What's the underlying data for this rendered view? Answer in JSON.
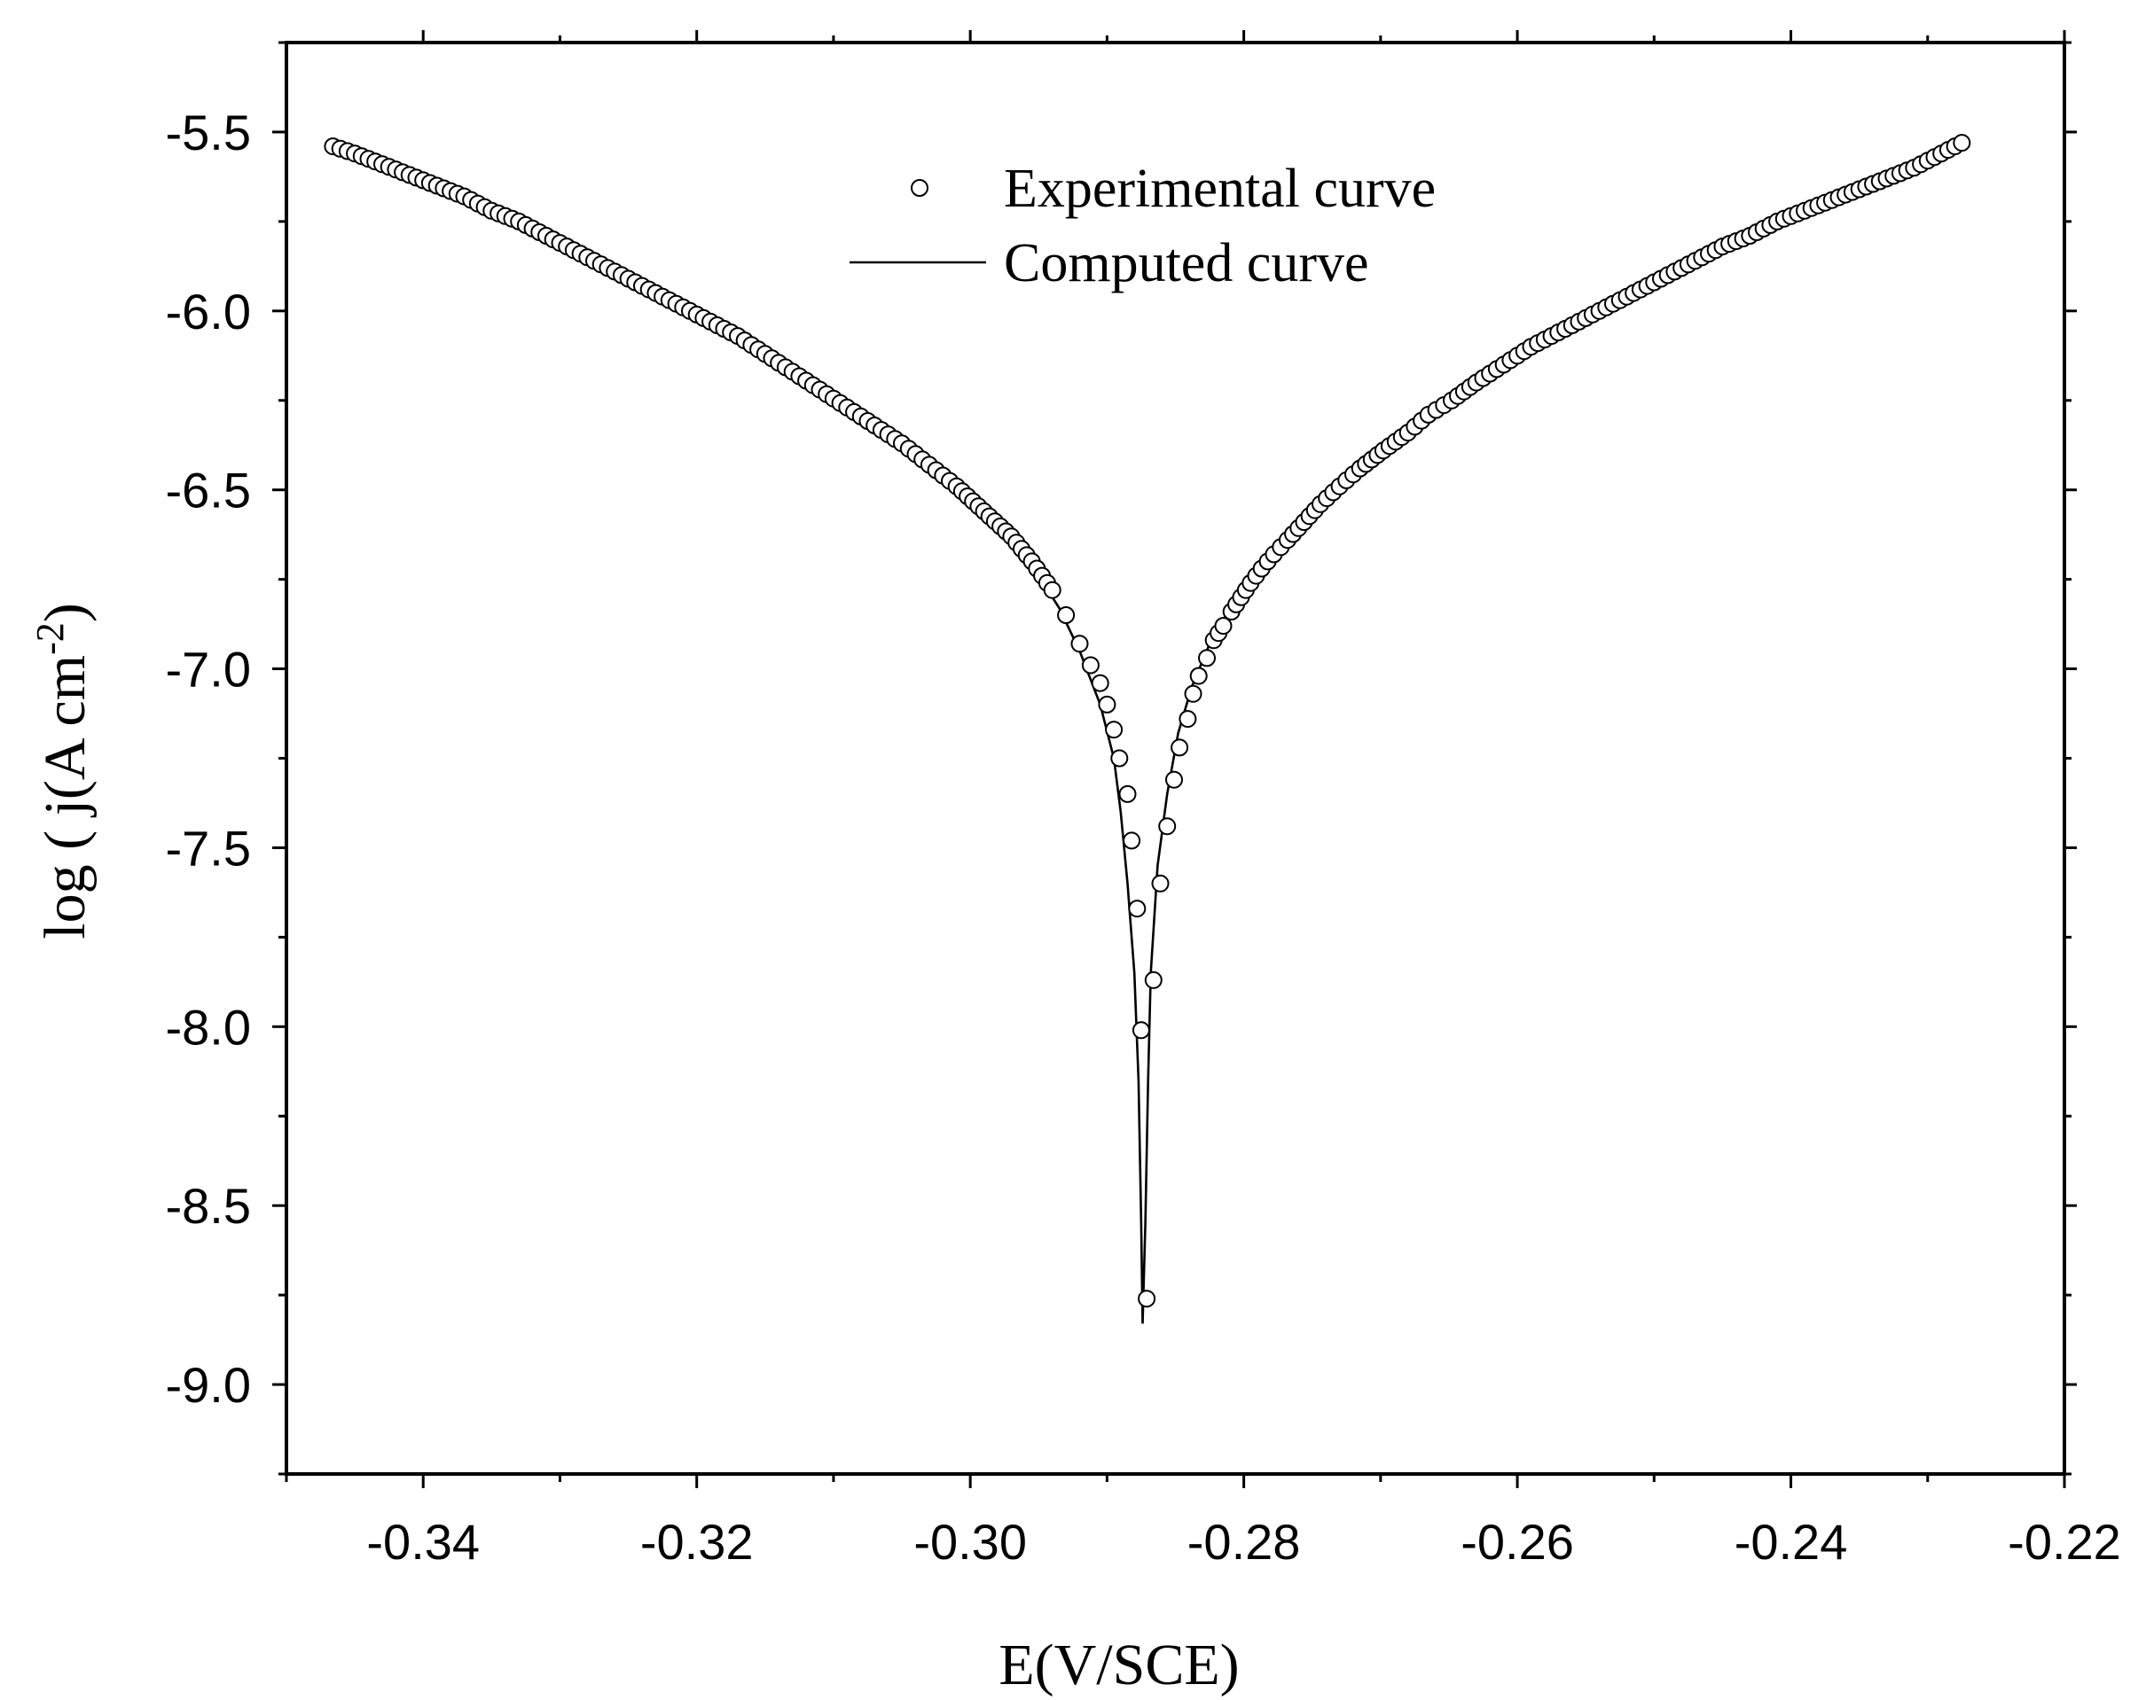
{
  "chart_data": {
    "type": "scatter",
    "title": "",
    "xlabel": "E(V/SCE)",
    "ylabel": {
      "prefix": "log ( j(A cm",
      "superscript": "-2",
      "suffix": ")"
    },
    "xlim": [
      -0.35,
      -0.22
    ],
    "ylim": [
      -9.25,
      -5.25
    ],
    "xticks": [
      -0.34,
      -0.32,
      -0.3,
      -0.28,
      -0.26,
      -0.24,
      -0.22
    ],
    "xtick_labels": [
      "-0.34",
      "-0.32",
      "-0.30",
      "-0.28",
      "-0.26",
      "-0.24",
      "-0.22"
    ],
    "yticks": [
      -5.5,
      -6.0,
      -6.5,
      -7.0,
      -7.5,
      -8.0,
      -8.5,
      -9.0
    ],
    "ytick_labels": [
      "-5.5",
      "-6.0",
      "-6.5",
      "-7.0",
      "-7.5",
      "-8.0",
      "-8.5",
      "-9.0"
    ],
    "legend": {
      "position": "top-center",
      "entries": [
        {
          "label": "Experimental curve",
          "marker": "open-circle"
        },
        {
          "label": "Computed curve",
          "marker": "line"
        }
      ]
    },
    "series": [
      {
        "name": "Experimental curve",
        "style": "open-circle",
        "points": [
          [
            -0.3466,
            -5.54
          ],
          [
            -0.345,
            -5.56
          ],
          [
            -0.343,
            -5.59
          ],
          [
            -0.341,
            -5.62
          ],
          [
            -0.339,
            -5.65
          ],
          [
            -0.337,
            -5.68
          ],
          [
            -0.335,
            -5.72
          ],
          [
            -0.333,
            -5.75
          ],
          [
            -0.331,
            -5.79
          ],
          [
            -0.329,
            -5.83
          ],
          [
            -0.327,
            -5.87
          ],
          [
            -0.325,
            -5.91
          ],
          [
            -0.323,
            -5.95
          ],
          [
            -0.321,
            -5.99
          ],
          [
            -0.319,
            -6.03
          ],
          [
            -0.317,
            -6.07
          ],
          [
            -0.315,
            -6.12
          ],
          [
            -0.313,
            -6.17
          ],
          [
            -0.311,
            -6.22
          ],
          [
            -0.309,
            -6.27
          ],
          [
            -0.307,
            -6.32
          ],
          [
            -0.305,
            -6.37
          ],
          [
            -0.303,
            -6.43
          ],
          [
            -0.301,
            -6.49
          ],
          [
            -0.299,
            -6.56
          ],
          [
            -0.297,
            -6.63
          ],
          [
            -0.2955,
            -6.7
          ],
          [
            -0.294,
            -6.78
          ],
          [
            -0.293,
            -6.85
          ],
          [
            -0.292,
            -6.93
          ],
          [
            -0.2912,
            -6.99
          ],
          [
            -0.2905,
            -7.04
          ],
          [
            -0.29,
            -7.1
          ],
          [
            -0.2895,
            -7.17
          ],
          [
            -0.2891,
            -7.25
          ],
          [
            -0.2885,
            -7.35
          ],
          [
            -0.2882,
            -7.48
          ],
          [
            -0.2878,
            -7.67
          ],
          [
            -0.2875,
            -8.01
          ],
          [
            -0.2871,
            -8.76
          ],
          [
            -0.2866,
            -7.87
          ],
          [
            -0.2861,
            -7.6
          ],
          [
            -0.2856,
            -7.44
          ],
          [
            -0.2851,
            -7.31
          ],
          [
            -0.2847,
            -7.22
          ],
          [
            -0.2841,
            -7.14
          ],
          [
            -0.2837,
            -7.07
          ],
          [
            -0.2833,
            -7.02
          ],
          [
            -0.2827,
            -6.97
          ],
          [
            -0.2822,
            -6.92
          ],
          [
            -0.2815,
            -6.88
          ],
          [
            -0.2809,
            -6.84
          ],
          [
            -0.2802,
            -6.8
          ],
          [
            -0.2795,
            -6.76
          ],
          [
            -0.2787,
            -6.72
          ],
          [
            -0.2778,
            -6.68
          ],
          [
            -0.2768,
            -6.64
          ],
          [
            -0.2756,
            -6.59
          ],
          [
            -0.2744,
            -6.54
          ],
          [
            -0.273,
            -6.49
          ],
          [
            -0.2715,
            -6.44
          ],
          [
            -0.2698,
            -6.39
          ],
          [
            -0.268,
            -6.34
          ],
          [
            -0.2665,
            -6.29
          ],
          [
            -0.2648,
            -6.25
          ],
          [
            -0.263,
            -6.2
          ],
          [
            -0.261,
            -6.15
          ],
          [
            -0.259,
            -6.1
          ],
          [
            -0.257,
            -6.06
          ],
          [
            -0.255,
            -6.02
          ],
          [
            -0.253,
            -5.98
          ],
          [
            -0.251,
            -5.94
          ],
          [
            -0.249,
            -5.9
          ],
          [
            -0.247,
            -5.86
          ],
          [
            -0.245,
            -5.82
          ],
          [
            -0.243,
            -5.79
          ],
          [
            -0.241,
            -5.75
          ],
          [
            -0.239,
            -5.72
          ],
          [
            -0.237,
            -5.69
          ],
          [
            -0.235,
            -5.66
          ],
          [
            -0.233,
            -5.63
          ],
          [
            -0.231,
            -5.6
          ],
          [
            -0.229,
            -5.56
          ],
          [
            -0.2275,
            -5.53
          ]
        ]
      },
      {
        "name": "Computed curve",
        "style": "line",
        "points": [
          [
            -0.3466,
            -5.54
          ],
          [
            -0.341,
            -5.62
          ],
          [
            -0.335,
            -5.72
          ],
          [
            -0.329,
            -5.83
          ],
          [
            -0.323,
            -5.95
          ],
          [
            -0.317,
            -6.07
          ],
          [
            -0.311,
            -6.22
          ],
          [
            -0.305,
            -6.37
          ],
          [
            -0.301,
            -6.49
          ],
          [
            -0.298,
            -6.6
          ],
          [
            -0.295,
            -6.74
          ],
          [
            -0.2935,
            -6.83
          ],
          [
            -0.292,
            -6.95
          ],
          [
            -0.2905,
            -7.1
          ],
          [
            -0.2895,
            -7.25
          ],
          [
            -0.289,
            -7.4
          ],
          [
            -0.2885,
            -7.6
          ],
          [
            -0.288,
            -7.85
          ],
          [
            -0.2877,
            -8.15
          ],
          [
            -0.2875,
            -8.55
          ],
          [
            -0.2874,
            -8.83
          ],
          [
            -0.2872,
            -8.55
          ],
          [
            -0.287,
            -8.15
          ],
          [
            -0.2868,
            -7.85
          ],
          [
            -0.2863,
            -7.55
          ],
          [
            -0.2856,
            -7.35
          ],
          [
            -0.2848,
            -7.18
          ],
          [
            -0.2838,
            -7.05
          ],
          [
            -0.2825,
            -6.93
          ],
          [
            -0.281,
            -6.83
          ],
          [
            -0.279,
            -6.72
          ],
          [
            -0.2768,
            -6.62
          ],
          [
            -0.2745,
            -6.53
          ],
          [
            -0.272,
            -6.45
          ],
          [
            -0.269,
            -6.37
          ],
          [
            -0.266,
            -6.28
          ],
          [
            -0.263,
            -6.2
          ],
          [
            -0.259,
            -6.1
          ],
          [
            -0.255,
            -6.02
          ],
          [
            -0.251,
            -5.94
          ],
          [
            -0.247,
            -5.86
          ],
          [
            -0.243,
            -5.79
          ],
          [
            -0.239,
            -5.72
          ],
          [
            -0.235,
            -5.66
          ],
          [
            -0.231,
            -5.6
          ],
          [
            -0.2275,
            -5.53
          ]
        ]
      }
    ]
  }
}
